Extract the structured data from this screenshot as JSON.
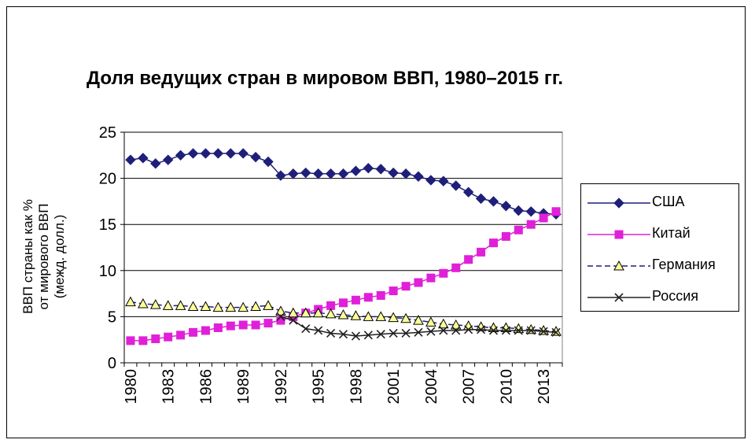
{
  "chart_data": {
    "type": "line",
    "title": "Доля ведущих стран в мировом ВВП, 1980–2015 гг.",
    "ylabel_lines": [
      "ВВП страны как %",
      "от мирового ВВП",
      "(межд. долл.)"
    ],
    "xlabel": "",
    "ylim": [
      0,
      25
    ],
    "yticks": [
      "0",
      "5",
      "10",
      "15",
      "20",
      "25"
    ],
    "x": [
      1980,
      1981,
      1982,
      1983,
      1984,
      1985,
      1986,
      1987,
      1988,
      1989,
      1990,
      1991,
      1992,
      1993,
      1994,
      1995,
      1996,
      1997,
      1998,
      1999,
      2000,
      2001,
      2002,
      2003,
      2004,
      2005,
      2006,
      2007,
      2008,
      2009,
      2010,
      2011,
      2012,
      2013,
      2014
    ],
    "xtick_labels": [
      "1980",
      "1983",
      "1986",
      "1989",
      "1992",
      "1995",
      "1998",
      "2001",
      "2004",
      "2007",
      "2010",
      "2013"
    ],
    "grid": "horizontal",
    "legend_position": "right",
    "series": [
      {
        "name": "США",
        "color": "#1f1f7a",
        "marker": "diamond",
        "dash": "solid",
        "values": [
          22.0,
          22.2,
          21.6,
          22.0,
          22.5,
          22.7,
          22.7,
          22.7,
          22.7,
          22.7,
          22.3,
          21.8,
          20.3,
          20.5,
          20.6,
          20.5,
          20.5,
          20.5,
          20.8,
          21.1,
          21.0,
          20.6,
          20.5,
          20.2,
          19.8,
          19.7,
          19.2,
          18.5,
          17.8,
          17.5,
          17.0,
          16.5,
          16.4,
          16.2,
          16.1
        ]
      },
      {
        "name": "Китай",
        "color": "#e020d8",
        "marker": "square",
        "dash": "solid",
        "values": [
          2.4,
          2.4,
          2.6,
          2.8,
          3.0,
          3.3,
          3.5,
          3.8,
          4.0,
          4.1,
          4.1,
          4.3,
          4.6,
          5.0,
          5.4,
          5.8,
          6.2,
          6.5,
          6.8,
          7.1,
          7.3,
          7.8,
          8.3,
          8.7,
          9.2,
          9.7,
          10.3,
          11.2,
          12.0,
          13.0,
          13.7,
          14.4,
          15.0,
          15.7,
          16.4
        ]
      },
      {
        "name": "Германия",
        "color": "#1f1f7a",
        "marker": "triangle",
        "dash": "dashed",
        "values": [
          6.6,
          6.4,
          6.3,
          6.2,
          6.2,
          6.1,
          6.1,
          6.0,
          6.0,
          6.0,
          6.1,
          6.2,
          5.6,
          5.4,
          5.4,
          5.4,
          5.3,
          5.2,
          5.1,
          5.0,
          5.0,
          4.9,
          4.8,
          4.6,
          4.4,
          4.2,
          4.1,
          4.0,
          3.9,
          3.8,
          3.8,
          3.7,
          3.6,
          3.5,
          3.4
        ]
      },
      {
        "name": "Россия",
        "color": "#202020",
        "marker": "x",
        "dash": "solid",
        "values": [
          null,
          null,
          null,
          null,
          null,
          null,
          null,
          null,
          null,
          null,
          null,
          null,
          5.0,
          4.6,
          3.7,
          3.5,
          3.2,
          3.1,
          2.9,
          3.0,
          3.1,
          3.2,
          3.2,
          3.3,
          3.4,
          3.5,
          3.5,
          3.6,
          3.6,
          3.5,
          3.5,
          3.5,
          3.5,
          3.4,
          3.3
        ]
      }
    ]
  }
}
